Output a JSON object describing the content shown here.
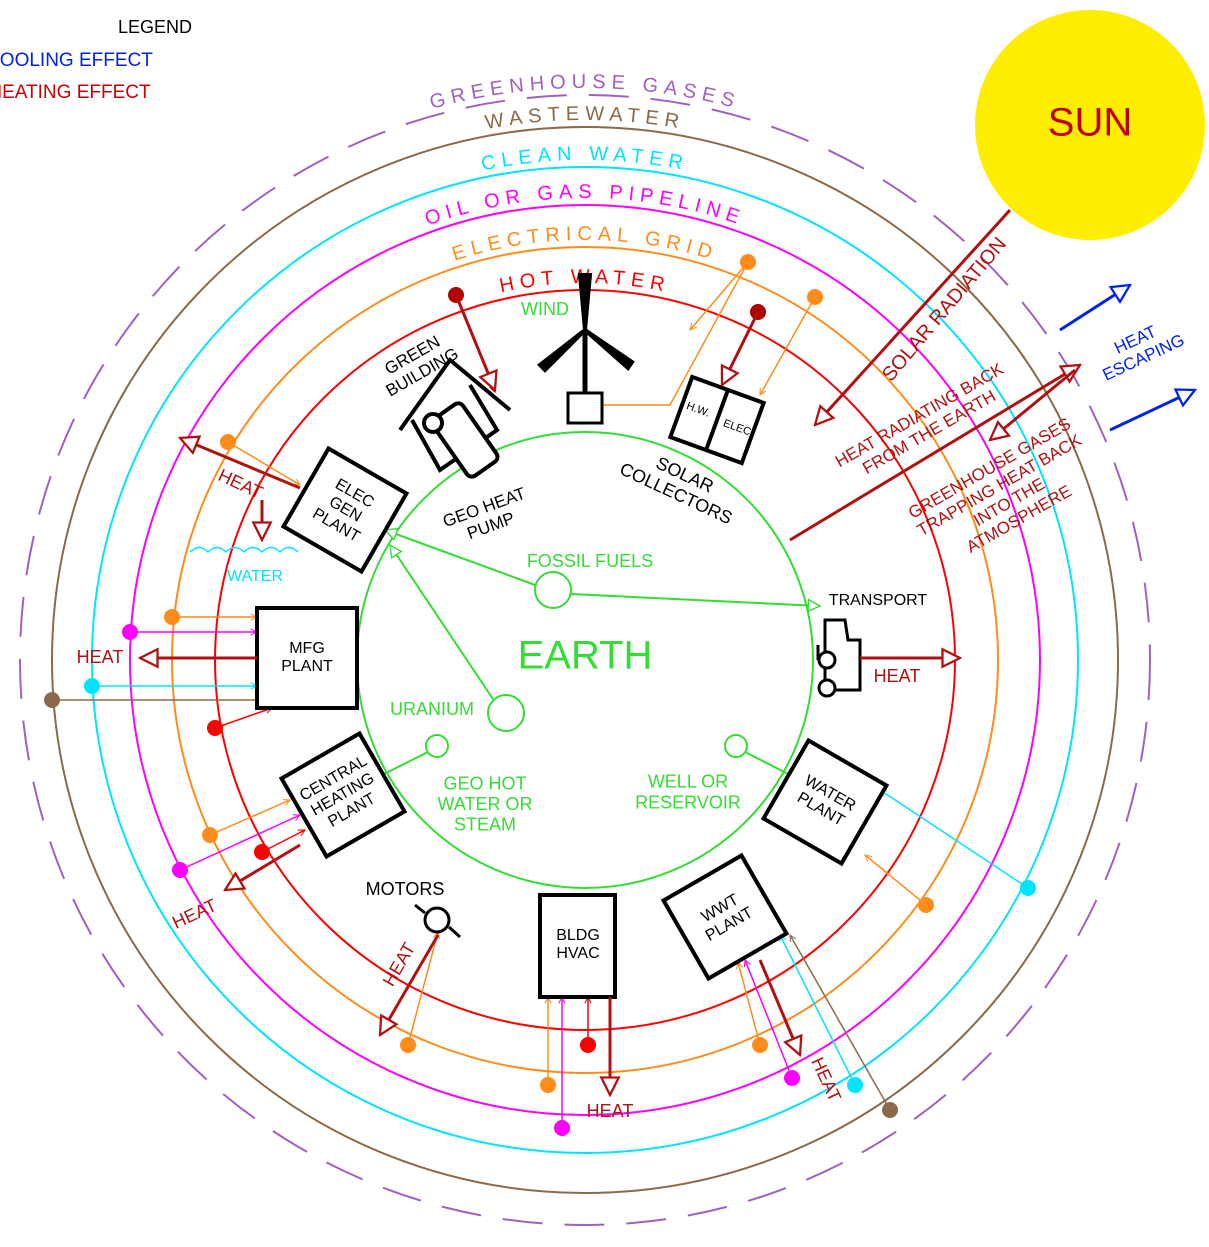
{
  "legend": {
    "title": "LEGEND",
    "items": [
      "NET COOLING EFFECT",
      "NET HEATING EFFECT"
    ]
  },
  "rings": [
    "GREENHOUSE GASES",
    "WASTEWATER",
    "CLEAN WATER",
    "OIL OR GAS PIPELINE",
    "ELECTRICAL GRID",
    "HOT WATER"
  ],
  "sun": "SUN",
  "earth": "EARTH",
  "radiation": {
    "solar": "SOLAR RADIATION",
    "escaping": [
      "HEAT",
      "ESCAPING"
    ],
    "radiating": [
      "HEAT RADIATING BACK",
      "FROM THE EARTH"
    ],
    "trapping": [
      "GREENHOUSE GASES",
      "TRAPPING HEAT BACK",
      "INTO THE",
      "ATMOSPHERE"
    ]
  },
  "nodes": {
    "wind": "WIND",
    "green_building": [
      "GREEN",
      "BUILDING"
    ],
    "geo_heat_pump": [
      "GEO HEAT",
      "PUMP"
    ],
    "solar_collectors": [
      "SOLAR",
      "COLLECTORS"
    ],
    "hw": "H.W.",
    "elec": "ELEC",
    "elec_gen_plant": [
      "ELEC",
      "GEN",
      "PLANT"
    ],
    "water": "WATER",
    "fossil_fuels": "FOSSIL FUELS",
    "transport": "TRANSPORT",
    "mfg_plant": [
      "MFG",
      "PLANT"
    ],
    "uranium": "URANIUM",
    "geo_hot_water": [
      "GEO HOT",
      "WATER OR",
      "STEAM"
    ],
    "well": [
      "WELL OR",
      "RESERVOIR"
    ],
    "water_plant": [
      "WATER",
      "PLANT"
    ],
    "central_heating": [
      "CENTRAL",
      "HEATING",
      "PLANT"
    ],
    "motors": "MOTORS",
    "bldg_hvac": [
      "BLDG",
      "HVAC"
    ],
    "wwt_plant": [
      "WWT",
      "PLANT"
    ]
  },
  "heat_labels": [
    "HEAT",
    "HEAT",
    "HEAT",
    "HEAT",
    "HEAT",
    "HEAT",
    "HEAT"
  ]
}
